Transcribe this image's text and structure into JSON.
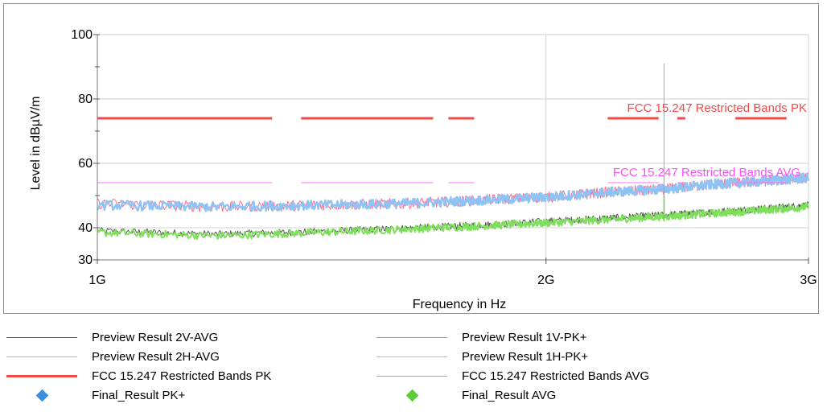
{
  "chart_data": {
    "type": "line",
    "xlabel": "Frequency in Hz",
    "ylabel": "Level in dBµV/m",
    "xscale": "log",
    "xlim": [
      1000000000,
      3000000000
    ],
    "ylim": [
      30,
      100
    ],
    "xticks": [
      {
        "value": 1000000000,
        "label": "1G"
      },
      {
        "value": 2000000000,
        "label": "2G"
      },
      {
        "value": 3000000000,
        "label": "3G"
      }
    ],
    "yticks": [
      {
        "value": 30,
        "label": "30"
      },
      {
        "value": 40,
        "label": "40"
      },
      {
        "value": 60,
        "label": "60"
      },
      {
        "value": 80,
        "label": "80"
      },
      {
        "value": 100,
        "label": "100"
      }
    ],
    "yminor": [
      50,
      70,
      90
    ],
    "grid": true,
    "series": [
      {
        "name": "Preview Result 1V-PK+",
        "color": "#ff6b8e",
        "x": [
          1.0,
          1.2,
          1.4,
          1.6,
          1.8,
          2.0,
          2.2,
          2.4,
          2.6,
          2.8,
          3.0
        ],
        "y": [
          47.5,
          46.5,
          47,
          47.5,
          48.5,
          49.5,
          51,
          52,
          53.5,
          54.5,
          55.5
        ]
      },
      {
        "name": "Preview Result 1H-PK+",
        "color": "#8fc3f4",
        "x": [
          1.0,
          1.2,
          1.4,
          1.6,
          1.8,
          2.0,
          2.2,
          2.4,
          2.6,
          2.8,
          3.0
        ],
        "y": [
          47,
          46.5,
          47,
          47.5,
          48.5,
          49.5,
          51,
          52,
          53.5,
          54.5,
          55.5
        ]
      },
      {
        "name": "Preview Result 2V-AVG",
        "color": "#555555",
        "x": [
          1.0,
          1.2,
          1.4,
          1.6,
          1.8,
          2.0,
          2.2,
          2.4,
          2.6,
          2.8,
          3.0
        ],
        "y": [
          39,
          38,
          38.8,
          39.8,
          40.8,
          42,
          43,
          44,
          45,
          46,
          47
        ]
      },
      {
        "name": "Preview Result 2H-AVG",
        "color": "#7ee05a",
        "x": [
          1.0,
          1.2,
          1.4,
          1.6,
          1.8,
          2.0,
          2.2,
          2.4,
          2.6,
          2.8,
          3.0
        ],
        "y": [
          38.5,
          37.5,
          38.5,
          39.5,
          40.5,
          41.5,
          42.5,
          43.5,
          44.5,
          45.5,
          46.5
        ]
      },
      {
        "name": "FCC 15.247 Restricted Bands PK",
        "color": "#f24a4a",
        "value": 74,
        "ranges": [
          [
            1.0,
            1.31
          ],
          [
            1.37,
            1.68
          ],
          [
            1.72,
            1.79
          ],
          [
            2.2,
            2.38
          ],
          [
            2.45,
            2.48
          ],
          [
            2.68,
            2.9
          ]
        ]
      },
      {
        "name": "FCC 15.247 Restricted Bands AVG",
        "color": "#ff6dff",
        "value": 54,
        "ranges": [
          [
            1.0,
            1.31
          ],
          [
            1.37,
            1.68
          ],
          [
            1.72,
            1.79
          ],
          [
            2.2,
            2.38
          ],
          [
            2.45,
            2.48
          ],
          [
            2.68,
            2.9
          ]
        ]
      },
      {
        "name": "Final_Result PK+",
        "color": "#3b8fdc",
        "marker": "diamond"
      },
      {
        "name": "Final_Result AVG",
        "color": "#5ccc3b",
        "marker": "diamond"
      }
    ],
    "spike": {
      "x": 2.4,
      "y_top": 91,
      "color": "#6eb4ea",
      "overlay_y_top": 50,
      "overlay_color": "#79c35a"
    },
    "annotations": [
      {
        "text": "FCC 15.247 Restricted Bands PK",
        "color": "#f24a4a"
      },
      {
        "text": "FCC 15.247 Restricted Bands AVG",
        "color": "#ff4dff"
      }
    ]
  },
  "legend": {
    "items": [
      {
        "label": "Preview Result 2V-AVG",
        "color": "#555555",
        "style": "line"
      },
      {
        "label": "Preview Result 1V-PK+",
        "color": "#ff6b8e",
        "style": "line"
      },
      {
        "label": "Preview Result 2H-AVG",
        "color": "#7ee05a",
        "style": "line"
      },
      {
        "label": "Preview Result 1H-PK+",
        "color": "#8fc3f4",
        "style": "line"
      },
      {
        "label": "FCC 15.247 Restricted Bands PK",
        "color": "#f24a4a",
        "style": "thick"
      },
      {
        "label": "FCC 15.247 Restricted Bands AVG",
        "color": "#ff6dff",
        "style": "line"
      },
      {
        "label": "Final_Result PK+",
        "color": "#3b8fdc",
        "style": "diamond"
      },
      {
        "label": "Final_Result AVG",
        "color": "#5ccc3b",
        "style": "diamond"
      }
    ]
  }
}
